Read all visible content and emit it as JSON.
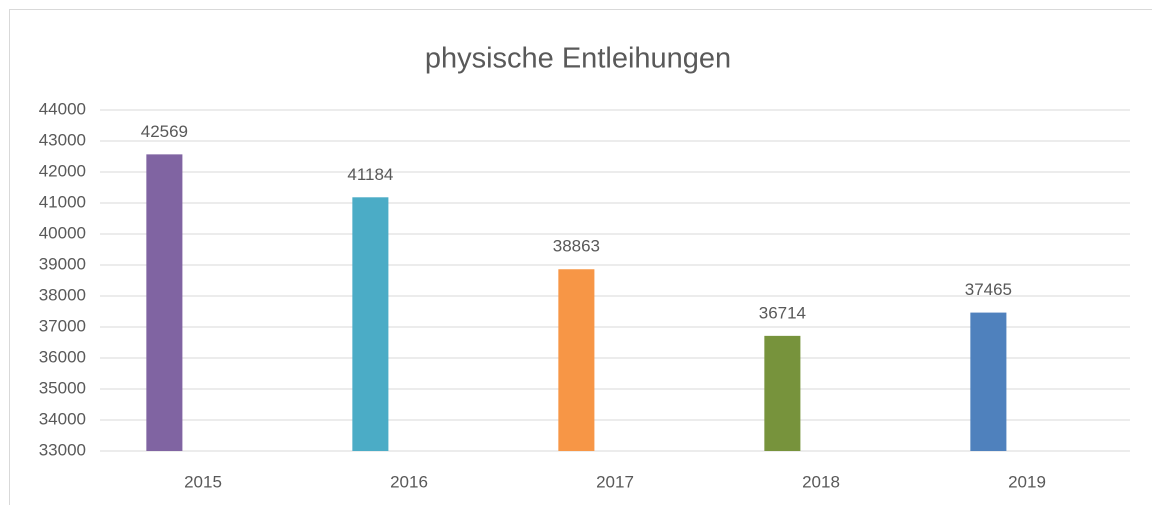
{
  "chart_data": {
    "type": "bar",
    "title": "physische Entleihungen",
    "categories": [
      "2015",
      "2016",
      "2017",
      "2018",
      "2019"
    ],
    "values": [
      42569,
      41184,
      38863,
      36714,
      37465
    ],
    "colors": [
      "#8064a2",
      "#4bacc6",
      "#f79646",
      "#77933c",
      "#4f81bd"
    ],
    "ylim": [
      33000,
      44000
    ],
    "yticks": [
      33000,
      34000,
      35000,
      36000,
      37000,
      38000,
      39000,
      40000,
      41000,
      42000,
      43000,
      44000
    ],
    "grid": true
  }
}
